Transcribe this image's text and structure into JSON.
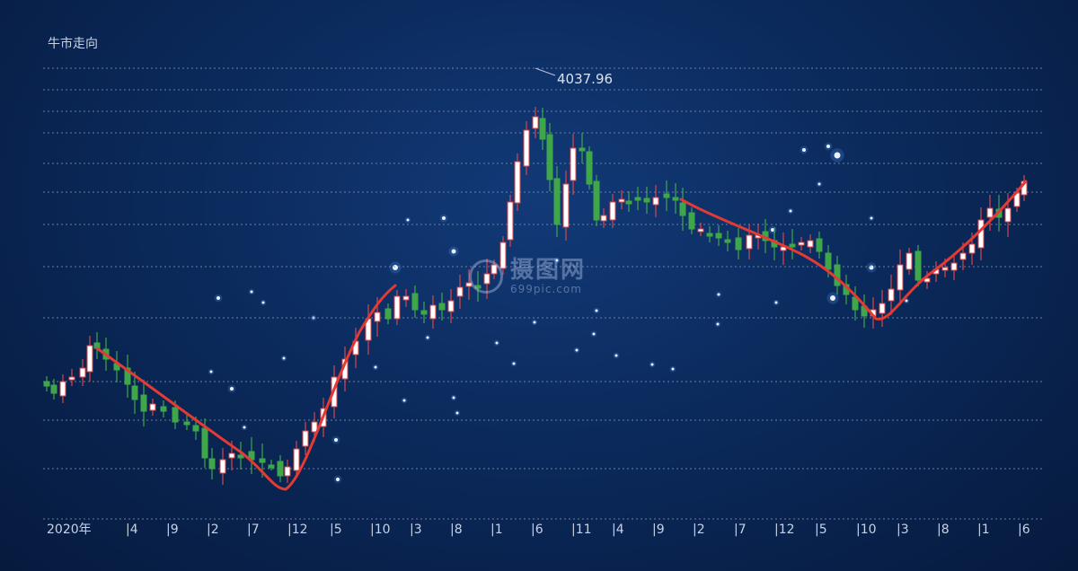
{
  "chart_data": {
    "type": "candlestick",
    "title": "牛市走向",
    "peak_label": "4037.96",
    "x_tick_labels": [
      "2020年",
      "|4",
      "|9",
      "|2",
      "|7",
      "|12",
      "|5",
      "|10",
      "|3",
      "|8",
      "|1",
      "|6",
      "|11",
      "|4",
      "|9",
      "|2",
      "|7",
      "|12",
      "|5",
      "|10",
      "|3",
      "|8",
      "|1",
      "|6"
    ],
    "colors": {
      "up": "#ffffff",
      "up_edge": "#d8464a",
      "down": "#3fa64a",
      "trend": "#e23a34",
      "grid": "#7d8db0",
      "axis_text": "#c8d2e6"
    },
    "grid": true
  },
  "watermark": {
    "main": "摄图网",
    "sub": "699pic.com"
  }
}
